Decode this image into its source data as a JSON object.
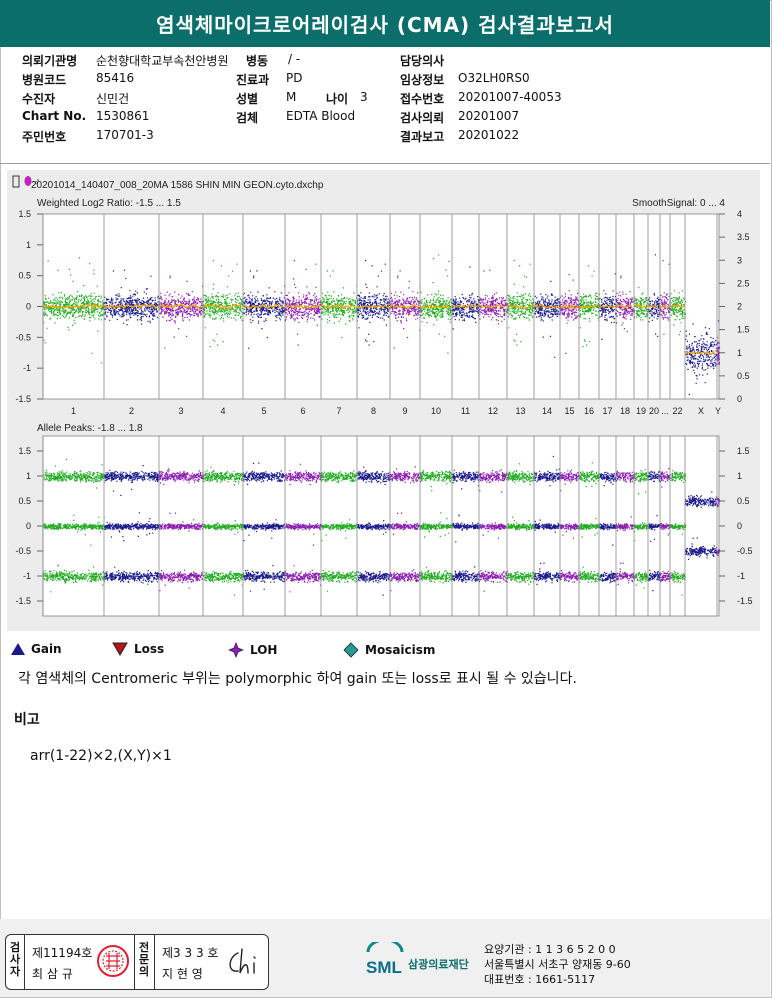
{
  "title": "염색체마이크로어레이검사 (CMA) 검사결과보고서",
  "patient": {
    "hospital_label": "의뢰기관명",
    "hospital": "순천향대학교부속천안병원",
    "ward_label": "병동",
    "ward": "/ -",
    "doctor_label": "담당의사",
    "doctor": "",
    "code_label": "병원코드",
    "code": "85416",
    "dept_label": "진료과",
    "dept": "PD",
    "clinical_label": "임상정보",
    "clinical": "O32LH0RS0",
    "name_label": "수진자",
    "name": "신민건",
    "sex_label": "성별",
    "sex": "M",
    "age_label": "나이",
    "age": "3",
    "receipt_label": "접수번호",
    "receipt": "20201007-40053",
    "chart_label": "Chart No.",
    "chart": "1530861",
    "specimen_label": "검체",
    "specimen": "EDTA Blood",
    "request_label": "검사의뢰",
    "request": "20201007",
    "id_label": "주민번호",
    "id": "170701-3",
    "report_label": "결과보고",
    "report": "20201022"
  },
  "colors": {
    "green": "#22aa22",
    "navy": "#1a1a8c",
    "purple": "#8a1fb0",
    "orange": "#f5a800",
    "header": "#0b6e6a"
  },
  "chart_data": {
    "type": "scatter",
    "file": "20201014_140407_008_20MA 1586 SHIN MIN GEON.cyto.dxchp",
    "top_panel": {
      "title": "Weighted Log2 Ratio: -1.5 ... 1.5",
      "right_title": "SmoothSignal: 0 ... 4",
      "ylim": [
        -1.5,
        1.5
      ],
      "yticks": [
        "1.5",
        "1",
        "0.5",
        "0",
        "-0.5",
        "-1",
        "-1.5"
      ],
      "right_ylim": [
        0,
        4
      ],
      "right_yticks": [
        "4",
        "3.5",
        "3",
        "2.5",
        "2",
        "1.5",
        "1",
        "0.5",
        "0"
      ],
      "smooth_signal_autosomes": 2,
      "smooth_signal_X": 1
    },
    "bottom_panel": {
      "title": "Allele Peaks: -1.8 ... 1.8",
      "ylim": [
        -1.8,
        1.8
      ],
      "yticks": [
        "1.5",
        "1",
        "0.5",
        "0",
        "-0.5",
        "-1",
        "-1.5"
      ],
      "right_yticks": [
        "1.5",
        "1",
        "0.5",
        "0",
        "-0.5",
        "-1",
        "-1.5"
      ]
    },
    "chromosomes": [
      "1",
      "2",
      "3",
      "4",
      "5",
      "6",
      "7",
      "8",
      "9",
      "10",
      "11",
      "12",
      "13",
      "14",
      "15",
      "16",
      "17",
      "18",
      "19",
      "20",
      "...",
      "22",
      "X",
      "Y"
    ]
  },
  "legend": [
    {
      "icon": "gain-triangle-icon",
      "label": "Gain"
    },
    {
      "icon": "loss-triangle-icon",
      "label": "Loss"
    },
    {
      "icon": "loh-star-icon",
      "label": "LOH"
    },
    {
      "icon": "mosaicism-diamond-icon",
      "label": "Mosaicism"
    }
  ],
  "note": "각 염색체의 Centromeric 부위는 polymorphic 하여 gain 또는 loss로 표시 될 수 있습니다.",
  "remark_title": "비고",
  "remark": "arr(1-22)×2,(X,Y)×1",
  "signatures": {
    "examiner_label": "검사자",
    "examiner_no": "제11194호",
    "examiner_name": "최 삼 규",
    "specialist_label": "전문의",
    "specialist_no": "제3 3 3 호",
    "specialist_name": "지 현 영"
  },
  "organization": {
    "logo": "SML",
    "name": "삼광의료재단",
    "line1": "요양기관 : 1 1 3 6 5 2 0 0",
    "line2": "서울특별시 서초구 양재동 9-60",
    "line3": "대표번호 : 1661-5117"
  }
}
